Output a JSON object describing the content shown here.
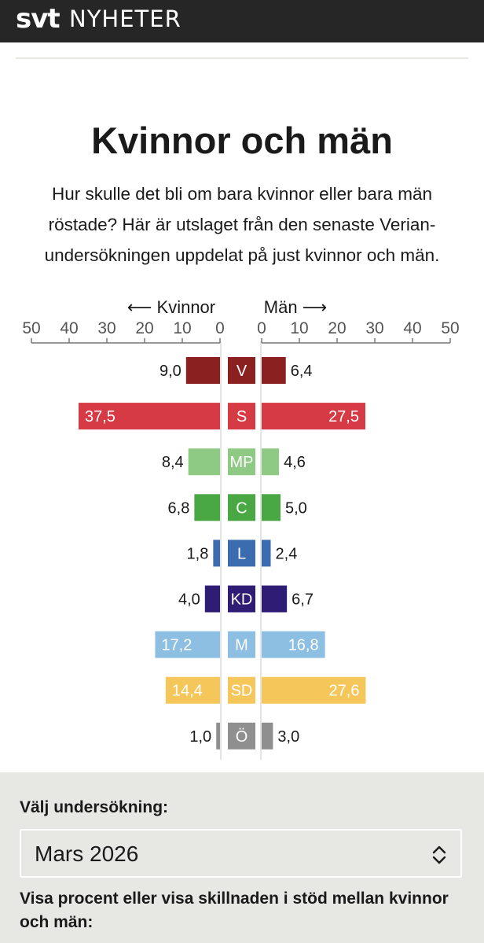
{
  "header": {
    "logo": "svt",
    "section": "NYHETER"
  },
  "article": {
    "title": "Kvinnor och män",
    "subtitle": "Hur skulle det bli om bara kvinnor eller bara män röstade? Här är utslaget från den senaste Verian-undersökningen uppdelat på just kvinnor och män."
  },
  "chart_data": {
    "type": "bar",
    "orientation": "horizontal-butterfly",
    "left_label": "⟵ Kvinnor",
    "right_label": "Män ⟶",
    "left_ticks": [
      "50",
      "40",
      "30",
      "20",
      "10",
      "0"
    ],
    "right_ticks": [
      "0",
      "10",
      "20",
      "30",
      "40",
      "50"
    ],
    "xlim": [
      0,
      50
    ],
    "categories": [
      "V",
      "S",
      "MP",
      "C",
      "L",
      "KD",
      "M",
      "SD",
      "Ö"
    ],
    "series": [
      {
        "name": "Kvinnor",
        "values": [
          9.0,
          37.5,
          8.4,
          6.8,
          1.8,
          4.0,
          17.2,
          14.4,
          1.0
        ],
        "labels": [
          "9,0",
          "37,5",
          "8,4",
          "6,8",
          "1,8",
          "4,0",
          "17,2",
          "14,4",
          "1,0"
        ]
      },
      {
        "name": "Män",
        "values": [
          6.4,
          27.5,
          4.6,
          5.0,
          2.4,
          6.7,
          16.8,
          27.6,
          3.0
        ],
        "labels": [
          "6,4",
          "27,5",
          "4,6",
          "5,0",
          "2,4",
          "6,7",
          "16,8",
          "27,6",
          "3,0"
        ]
      }
    ],
    "colors": [
      "#8b2020",
      "#d63a44",
      "#8fca85",
      "#4aa844",
      "#3b6cb0",
      "#2f1d75",
      "#8dbfe3",
      "#f5c65a",
      "#8f8f8f"
    ]
  },
  "controls": {
    "survey_label": "Välj undersökning:",
    "survey_value": "Mars 2026",
    "mode_label": "Visa procent eller visa skillnaden i stöd mellan kvinnor och män:"
  }
}
